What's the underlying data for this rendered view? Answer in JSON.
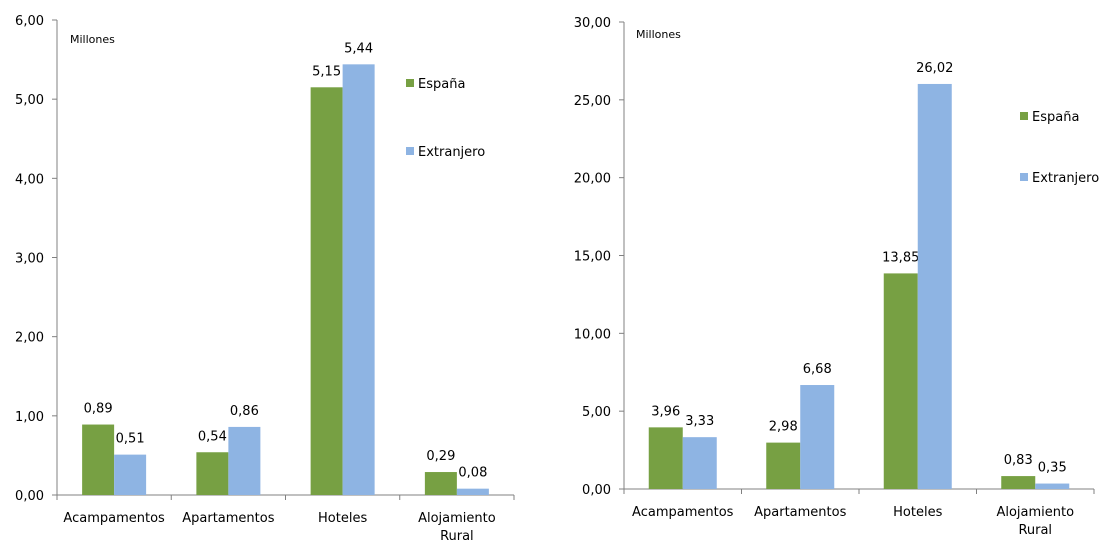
{
  "chart_data": [
    {
      "type": "bar",
      "unit_label": "Millones",
      "categories": [
        [
          "Acampamentos"
        ],
        [
          "Apartamentos"
        ],
        [
          "Hoteles"
        ],
        [
          "Alojamiento",
          "Rural"
        ]
      ],
      "series": [
        {
          "name": "España",
          "color": "#77A043",
          "values": [
            0.89,
            0.54,
            5.15,
            0.29
          ],
          "labels": [
            "0,89",
            "0,54",
            "5,15",
            "0,29"
          ]
        },
        {
          "name": "Extranjero",
          "color": "#8EB4E3",
          "values": [
            0.51,
            0.86,
            5.44,
            0.08
          ],
          "labels": [
            "0,51",
            "0,86",
            "5,44",
            "0,08"
          ]
        }
      ],
      "ylim": [
        0,
        6
      ],
      "yticks": [
        "0,00",
        "1,00",
        "2,00",
        "3,00",
        "4,00",
        "5,00",
        "6,00"
      ],
      "legend": "right"
    },
    {
      "type": "bar",
      "unit_label": "Millones",
      "categories": [
        [
          "Acampamentos"
        ],
        [
          "Apartamentos"
        ],
        [
          "Hoteles"
        ],
        [
          "Alojamiento",
          "Rural"
        ]
      ],
      "series": [
        {
          "name": "España",
          "color": "#77A043",
          "values": [
            3.96,
            2.98,
            13.85,
            0.83
          ],
          "labels": [
            "3,96",
            "2,98",
            "13,85",
            "0,83"
          ]
        },
        {
          "name": "Extranjero",
          "color": "#8EB4E3",
          "values": [
            3.33,
            6.68,
            26.02,
            0.35
          ],
          "labels": [
            "3,33",
            "6,68",
            "26,02",
            "0,35"
          ]
        }
      ],
      "ylim": [
        0,
        30
      ],
      "yticks": [
        "0,00",
        "5,00",
        "10,00",
        "15,00",
        "20,00",
        "25,00",
        "30,00"
      ],
      "legend": "right"
    }
  ]
}
